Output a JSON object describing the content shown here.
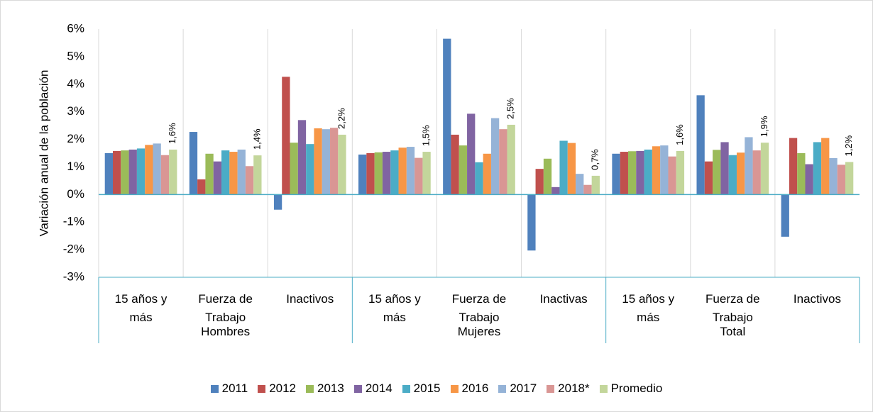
{
  "chart_data": {
    "type": "bar",
    "y_label": "Variación anual de la población",
    "categories": [
      "15 años y más",
      "Fuerza de Trabajo",
      "Inactivos",
      "15 años y más",
      "Fuerza de Trabajo",
      "Inactivas",
      "15 años y más",
      "Fuerza de Trabajo",
      "Inactivos"
    ],
    "groups": [
      "Hombres",
      "Mujeres",
      "Total"
    ],
    "ylim": [
      -3,
      6
    ],
    "yticks": [
      {
        "value": -3,
        "label": "-3%"
      },
      {
        "value": -2,
        "label": "-2%"
      },
      {
        "value": -1,
        "label": "-1%"
      },
      {
        "value": 0,
        "label": "0%"
      },
      {
        "value": 1,
        "label": "1%"
      },
      {
        "value": 2,
        "label": "2%"
      },
      {
        "value": 3,
        "label": "3%"
      },
      {
        "value": 4,
        "label": "4%"
      },
      {
        "value": 5,
        "label": "5%"
      },
      {
        "value": 6,
        "label": "6%"
      }
    ],
    "legend": "bottom",
    "series": [
      {
        "name": "2011",
        "color": "#4f81bd",
        "values": [
          1.5,
          2.27,
          -0.55,
          1.45,
          5.65,
          -2.03,
          1.48,
          3.6,
          -1.53
        ]
      },
      {
        "name": "2012",
        "color": "#c0504d",
        "values": [
          1.58,
          0.55,
          4.27,
          1.5,
          2.17,
          0.93,
          1.55,
          1.2,
          2.05
        ]
      },
      {
        "name": "2013",
        "color": "#9bbb59",
        "values": [
          1.6,
          1.48,
          1.88,
          1.53,
          1.78,
          1.3,
          1.57,
          1.62,
          1.5
        ]
      },
      {
        "name": "2014",
        "color": "#8064a2",
        "values": [
          1.63,
          1.2,
          2.7,
          1.55,
          2.93,
          0.27,
          1.58,
          1.9,
          1.1
        ]
      },
      {
        "name": "2015",
        "color": "#4bacc6",
        "values": [
          1.67,
          1.6,
          1.83,
          1.6,
          1.17,
          1.95,
          1.63,
          1.43,
          1.9
        ]
      },
      {
        "name": "2016",
        "color": "#f79646",
        "values": [
          1.8,
          1.55,
          2.4,
          1.7,
          1.48,
          1.87,
          1.75,
          1.52,
          2.05
        ]
      },
      {
        "name": "2017",
        "color": "#95b3d7",
        "values": [
          1.85,
          1.63,
          2.37,
          1.73,
          2.77,
          0.75,
          1.78,
          2.08,
          1.32
        ]
      },
      {
        "name": "2018*",
        "color": "#d99694",
        "values": [
          1.43,
          1.03,
          2.42,
          1.33,
          2.37,
          0.35,
          1.38,
          1.6,
          1.08
        ]
      },
      {
        "name": "Promedio",
        "color": "#c3d69b",
        "values": [
          1.63,
          1.42,
          2.17,
          1.55,
          2.53,
          0.68,
          1.58,
          1.88,
          1.18
        ],
        "value_labels": [
          "1,6%",
          "1,4%",
          "2,2%",
          "1,5%",
          "2,5%",
          "0,7%",
          "1,6%",
          "1,9%",
          "1,2%"
        ]
      }
    ]
  }
}
